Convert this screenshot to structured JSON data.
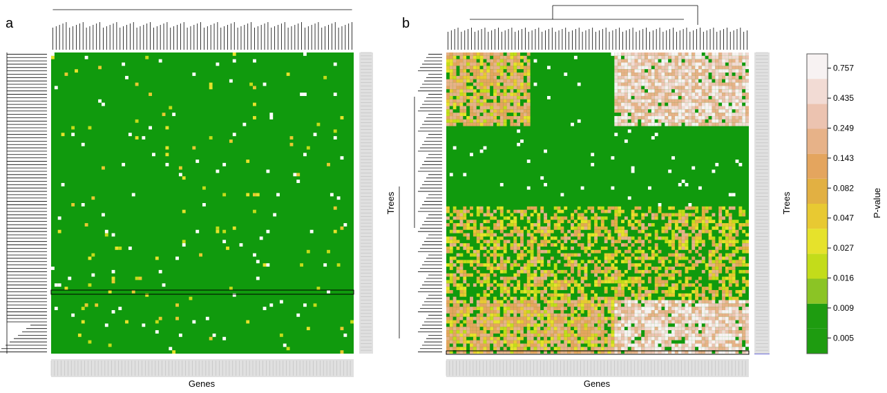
{
  "figure": {
    "panels": [
      {
        "id": "a",
        "letter": "a",
        "xlabel": "Genes",
        "ylabel": ""
      },
      {
        "id": "b",
        "letter": "b",
        "xlabel": "Genes",
        "ylabel": "Trees",
        "right_label": "Trees"
      }
    ]
  },
  "colors": {
    "green": "#109a0d",
    "highlight_blue": "#6b6bd8",
    "scale": [
      "#1e9c10",
      "#1e9c10",
      "#8bc425",
      "#c3dc1a",
      "#e6e22b",
      "#e8c932",
      "#e2b042",
      "#e4a55e",
      "#e7b288",
      "#ecc3b0",
      "#f2dbd4",
      "#f7f2f2"
    ]
  },
  "colorbar": {
    "title": "P-value",
    "ticks": [
      "0.005",
      "0.009",
      "0.016",
      "0.027",
      "0.047",
      "0.082",
      "0.143",
      "0.249",
      "0.435",
      "0.757"
    ]
  },
  "chart_data": [
    {
      "type": "heatmap",
      "panel": "a",
      "xlabel": "Genes",
      "ylabel": "",
      "n_rows": 90,
      "n_cols": 90,
      "value_range": [
        0.005,
        0.757
      ],
      "description_of_values": "Mostly green (p < 0.009) with scattered yellow/white cells near diagonal-like patterns"
    },
    {
      "type": "heatmap",
      "panel": "b",
      "xlabel": "Genes",
      "ylabel": "Trees",
      "n_rows": 90,
      "n_cols": 90,
      "value_range": [
        0.005,
        0.757
      ],
      "blocks": [
        {
          "rows": [
            0,
            22
          ],
          "cols": [
            0,
            25
          ],
          "level": "high"
        },
        {
          "rows": [
            0,
            22
          ],
          "cols": [
            25,
            50
          ],
          "level": "low"
        },
        {
          "rows": [
            0,
            22
          ],
          "cols": [
            50,
            90
          ],
          "level": "very-high"
        },
        {
          "rows": [
            22,
            46
          ],
          "cols": [
            0,
            90
          ],
          "level": "low"
        },
        {
          "rows": [
            46,
            74
          ],
          "cols": [
            0,
            90
          ],
          "level": "mixed"
        },
        {
          "rows": [
            74,
            90
          ],
          "cols": [
            0,
            50
          ],
          "level": "high"
        },
        {
          "rows": [
            74,
            90
          ],
          "cols": [
            50,
            90
          ],
          "level": "very-high"
        }
      ]
    }
  ]
}
